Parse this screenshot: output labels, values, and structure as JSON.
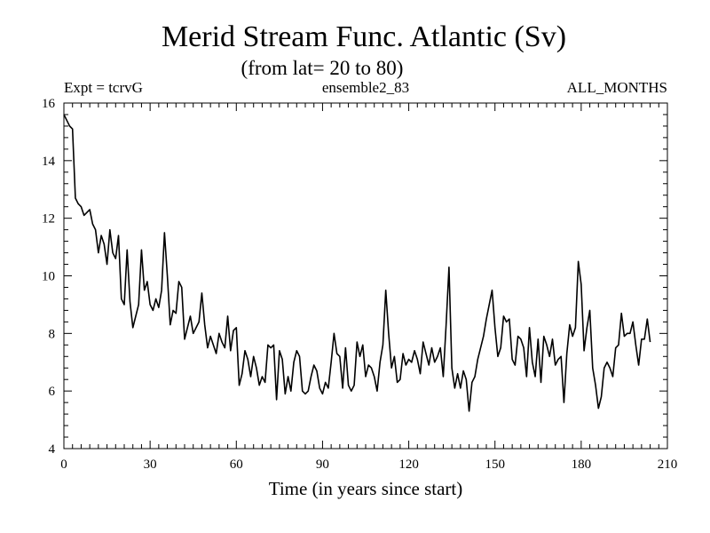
{
  "chart_data": {
    "type": "line",
    "title": "Merid Stream Func. Atlantic (Sv)",
    "subtitle": "(from lat= 20 to 80)",
    "header_left": "Expt = tcrvG",
    "header_center": "ensemble2_83",
    "header_right": "ALL_MONTHS",
    "xlabel": "Time (in years since start)",
    "ylabel": "",
    "xlim": [
      0,
      210
    ],
    "ylim": [
      4,
      16
    ],
    "xticks": [
      0,
      30,
      60,
      90,
      120,
      150,
      180,
      210
    ],
    "yticks": [
      4,
      6,
      8,
      10,
      12,
      14,
      16
    ],
    "x_start": 0,
    "x_step": 1,
    "series": [
      {
        "name": "Merid Stream Func. Atlantic",
        "values": [
          15.6,
          15.4,
          15.2,
          15.1,
          12.7,
          12.5,
          12.4,
          12.1,
          12.2,
          12.3,
          11.8,
          11.6,
          10.8,
          11.4,
          11.1,
          10.4,
          11.6,
          10.8,
          10.6,
          11.4,
          9.2,
          9.0,
          10.9,
          9.1,
          8.2,
          8.6,
          9.0,
          10.9,
          9.5,
          9.8,
          9.0,
          8.8,
          9.2,
          8.9,
          9.5,
          11.5,
          10.0,
          8.3,
          8.8,
          8.7,
          9.8,
          9.6,
          7.8,
          8.2,
          8.6,
          8.0,
          8.2,
          8.4,
          9.4,
          8.3,
          7.5,
          7.9,
          7.6,
          7.3,
          8.0,
          7.7,
          7.5,
          8.6,
          7.4,
          8.1,
          8.2,
          6.2,
          6.6,
          7.4,
          7.1,
          6.5,
          7.2,
          6.8,
          6.2,
          6.5,
          6.3,
          7.6,
          7.5,
          7.6,
          5.7,
          7.4,
          7.1,
          5.9,
          6.5,
          6.0,
          7.0,
          7.4,
          7.2,
          6.0,
          5.9,
          6.0,
          6.5,
          6.9,
          6.7,
          6.1,
          5.9,
          6.3,
          6.1,
          7.0,
          8.0,
          7.3,
          7.2,
          6.1,
          7.5,
          6.2,
          6.0,
          6.2,
          7.7,
          7.2,
          7.6,
          6.5,
          6.9,
          6.8,
          6.5,
          6.0,
          7.0,
          7.6,
          9.5,
          8.0,
          6.8,
          7.2,
          6.3,
          6.4,
          7.3,
          6.9,
          7.1,
          7.0,
          7.4,
          7.1,
          6.6,
          7.7,
          7.3,
          6.9,
          7.5,
          7.0,
          7.2,
          7.5,
          6.5,
          8.3,
          10.3,
          6.8,
          6.1,
          6.6,
          6.1,
          6.7,
          6.4,
          5.3,
          6.3,
          6.5,
          7.1,
          7.5,
          7.9,
          8.5,
          9.0,
          9.5,
          8.2,
          7.2,
          7.5,
          8.6,
          8.4,
          8.5,
          7.1,
          6.9,
          7.9,
          7.8,
          7.5,
          6.5,
          8.2,
          7.0,
          6.5,
          7.8,
          6.3,
          7.9,
          7.6,
          7.2,
          7.8,
          6.9,
          7.1,
          7.2,
          5.6,
          7.3,
          8.3,
          7.9,
          8.2,
          10.5,
          9.7,
          7.4,
          8.2,
          8.8,
          6.8,
          6.2,
          5.4,
          5.8,
          6.8,
          7.0,
          6.8,
          6.5,
          7.5,
          7.6,
          8.7,
          7.9,
          8.0,
          8.0,
          8.4,
          7.6,
          6.9,
          7.8,
          7.8,
          8.5,
          7.7
        ]
      }
    ]
  }
}
